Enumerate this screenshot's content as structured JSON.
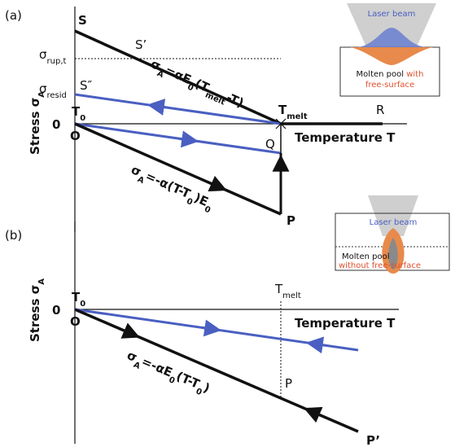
{
  "panel_a": {
    "label": "(a)",
    "y_axis": [
      "Stress σ",
      "A"
    ],
    "zero": "0",
    "t0": [
      "T",
      "0"
    ],
    "origin": "O",
    "s": "S",
    "s_prime": "S’",
    "s_double_prime": "S″",
    "sigma_rup": [
      "σ",
      "rup,t"
    ],
    "sigma_resid": [
      "σ",
      "resid"
    ],
    "t_melt": [
      "T",
      "melt"
    ],
    "r": "R",
    "q": "Q",
    "p": "P",
    "x_axis": "Temperature T",
    "eq_upper": [
      "σ",
      "A",
      "=αE",
      "0",
      "(T",
      "melt",
      "-T)"
    ],
    "eq_lower": [
      "σ",
      "A",
      "=-α(T-T",
      "0",
      ")E",
      "0"
    ],
    "inset": {
      "beam": "Laser beam",
      "pool": "Molten pool",
      "with": "with",
      "free_surface": "free-surface"
    }
  },
  "panel_b": {
    "label": "(b)",
    "y_axis": [
      "Stress σ",
      "A"
    ],
    "zero": "0",
    "t0": [
      "T",
      "0"
    ],
    "origin": "O",
    "t_melt": [
      "T",
      "melt"
    ],
    "p": "P",
    "p_prime": "P’",
    "x_axis": "Temperature T",
    "eq": [
      "σ",
      "A",
      "=-αE",
      "0",
      "(T-T",
      "0",
      ")"
    ],
    "inset": {
      "beam": "Laser beam",
      "pool": "Molten pool",
      "without": "without free-surface"
    }
  }
}
